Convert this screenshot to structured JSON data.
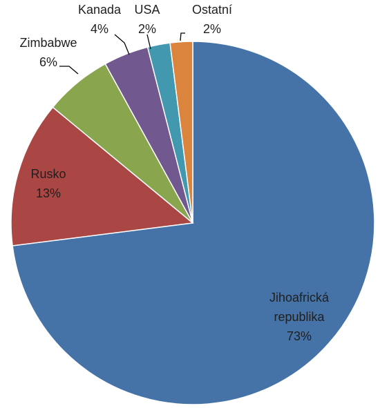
{
  "chart_data": {
    "type": "pie",
    "slices": [
      {
        "name": "Jihoafrická republika",
        "name_lines": [
          "Jihoafrická",
          "republika"
        ],
        "percent": 73,
        "value_label": "73%",
        "color": "#4572A7"
      },
      {
        "name": "Rusko",
        "name_lines": [
          "Rusko"
        ],
        "percent": 13,
        "value_label": "13%",
        "color": "#AA4643"
      },
      {
        "name": "Zimbabwe",
        "name_lines": [
          "Zimbabwe"
        ],
        "percent": 6,
        "value_label": "6%",
        "color": "#89A54E"
      },
      {
        "name": "Kanada",
        "name_lines": [
          "Kanada"
        ],
        "percent": 4,
        "value_label": "4%",
        "color": "#71588F"
      },
      {
        "name": "USA",
        "name_lines": [
          "USA"
        ],
        "percent": 2,
        "value_label": "2%",
        "color": "#4198AF"
      },
      {
        "name": "Ostatní",
        "name_lines": [
          "Ostatní"
        ],
        "percent": 2,
        "value_label": "2%",
        "color": "#DB843D"
      }
    ],
    "start_angle": "12 o'clock",
    "direction": "clockwise",
    "legend": "none",
    "labels": "category name and percentage beside each slice"
  }
}
